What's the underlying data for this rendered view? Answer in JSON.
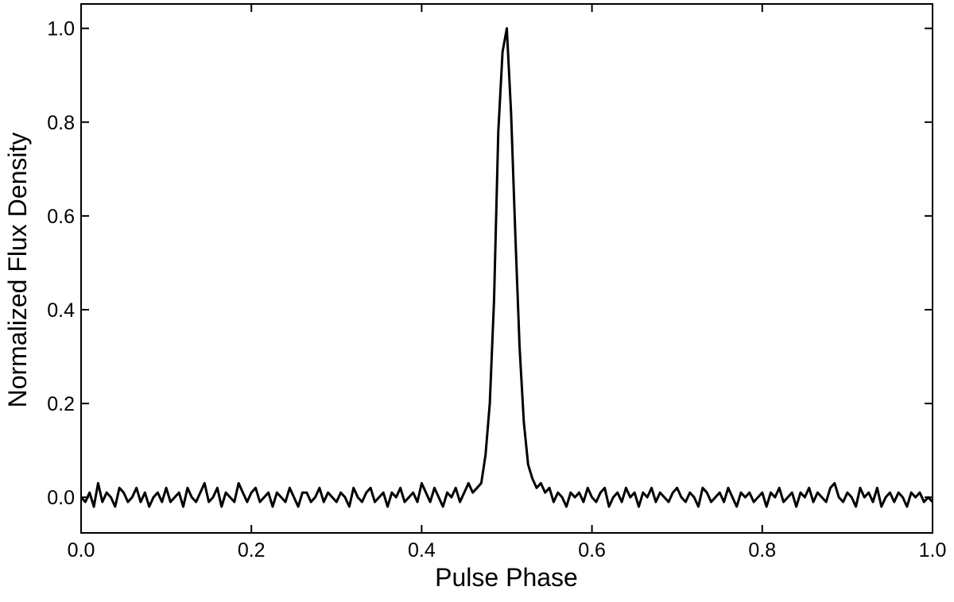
{
  "chart_data": {
    "type": "line",
    "xlabel": "Pulse Phase",
    "ylabel": "Normalized Flux Density",
    "xlim": [
      0,
      1
    ],
    "ylim": [
      -0.076,
      1.052
    ],
    "xticks": [
      {
        "value": 0,
        "label": "0.0"
      },
      0.2,
      0.4,
      0.6,
      0.8,
      {
        "value": 1,
        "label": "1.0"
      }
    ],
    "yticks": [
      {
        "value": 0,
        "label": "0.0"
      },
      0.2,
      0.4,
      0.6,
      0.8,
      {
        "value": 1,
        "label": "1.0"
      }
    ],
    "grid": false,
    "x": [
      0,
      0.005,
      0.01,
      0.015,
      0.02,
      0.025,
      0.03,
      0.035,
      0.04,
      0.045,
      0.05,
      0.055,
      0.06,
      0.065,
      0.07,
      0.075,
      0.08,
      0.085,
      0.09,
      0.095,
      0.1,
      0.105,
      0.11,
      0.115,
      0.12,
      0.125,
      0.13,
      0.135,
      0.14,
      0.145,
      0.15,
      0.155,
      0.16,
      0.165,
      0.17,
      0.175,
      0.18,
      0.185,
      0.19,
      0.195,
      0.2,
      0.205,
      0.21,
      0.215,
      0.22,
      0.225,
      0.23,
      0.235,
      0.24,
      0.245,
      0.25,
      0.255,
      0.26,
      0.265,
      0.27,
      0.275,
      0.28,
      0.285,
      0.29,
      0.295,
      0.3,
      0.305,
      0.31,
      0.315,
      0.32,
      0.325,
      0.33,
      0.335,
      0.34,
      0.345,
      0.35,
      0.355,
      0.36,
      0.365,
      0.37,
      0.375,
      0.38,
      0.385,
      0.39,
      0.395,
      0.4,
      0.405,
      0.41,
      0.415,
      0.42,
      0.425,
      0.43,
      0.435,
      0.44,
      0.445,
      0.45,
      0.455,
      0.46,
      0.465,
      0.47,
      0.475,
      0.48,
      0.485,
      0.49,
      0.495,
      0.5,
      0.505,
      0.51,
      0.515,
      0.52,
      0.525,
      0.53,
      0.535,
      0.54,
      0.545,
      0.55,
      0.555,
      0.56,
      0.565,
      0.57,
      0.575,
      0.58,
      0.585,
      0.59,
      0.595,
      0.6,
      0.605,
      0.61,
      0.615,
      0.62,
      0.625,
      0.63,
      0.635,
      0.64,
      0.645,
      0.65,
      0.655,
      0.66,
      0.665,
      0.67,
      0.675,
      0.68,
      0.685,
      0.69,
      0.695,
      0.7,
      0.705,
      0.71,
      0.715,
      0.72,
      0.725,
      0.73,
      0.735,
      0.74,
      0.745,
      0.75,
      0.755,
      0.76,
      0.765,
      0.77,
      0.775,
      0.78,
      0.785,
      0.79,
      0.795,
      0.8,
      0.805,
      0.81,
      0.815,
      0.82,
      0.825,
      0.83,
      0.835,
      0.84,
      0.845,
      0.85,
      0.855,
      0.86,
      0.865,
      0.87,
      0.875,
      0.88,
      0.885,
      0.89,
      0.895,
      0.9,
      0.905,
      0.91,
      0.915,
      0.92,
      0.925,
      0.93,
      0.935,
      0.94,
      0.945,
      0.95,
      0.955,
      0.96,
      0.965,
      0.97,
      0.975,
      0.98,
      0.985,
      0.99,
      0.995,
      1
    ],
    "series": [
      {
        "color": "#000000",
        "values": [
          0,
          -0.01,
          0.01,
          -0.02,
          0.03,
          -0.01,
          0.01,
          0,
          -0.02,
          0.02,
          0.01,
          -0.01,
          0,
          0.02,
          -0.01,
          0.01,
          -0.02,
          0,
          0.01,
          -0.01,
          0.02,
          -0.01,
          0,
          0.01,
          -0.02,
          0.02,
          0,
          -0.01,
          0.01,
          0.03,
          -0.01,
          0,
          0.02,
          -0.02,
          0.01,
          0,
          -0.01,
          0.03,
          0.01,
          -0.01,
          0.01,
          0.02,
          -0.01,
          0,
          0.01,
          -0.02,
          0.01,
          0,
          -0.01,
          0.02,
          0,
          -0.02,
          0.01,
          0.01,
          -0.01,
          0,
          0.02,
          -0.01,
          0.01,
          0,
          -0.01,
          0.01,
          0,
          -0.02,
          0.02,
          0,
          -0.01,
          0.01,
          0.02,
          -0.01,
          0,
          0.01,
          -0.02,
          0.01,
          0,
          0.02,
          -0.01,
          0,
          0.01,
          -0.01,
          0.03,
          0.01,
          -0.01,
          0.02,
          0,
          -0.02,
          0.01,
          0,
          0.02,
          -0.01,
          0.01,
          0.03,
          0.01,
          0.02,
          0.03,
          0.09,
          0.2,
          0.42,
          0.78,
          0.95,
          1,
          0.82,
          0.56,
          0.32,
          0.16,
          0.07,
          0.04,
          0.02,
          0.03,
          0.01,
          0.02,
          -0.01,
          0.01,
          0,
          -0.02,
          0.01,
          0,
          0.01,
          -0.01,
          0.02,
          0,
          -0.01,
          0.01,
          0.02,
          -0.02,
          0,
          0.01,
          -0.01,
          0.02,
          0,
          0.01,
          -0.02,
          0.01,
          0,
          0.02,
          -0.01,
          0.01,
          0,
          -0.01,
          0.01,
          0.02,
          0,
          -0.01,
          0.01,
          0,
          -0.02,
          0.02,
          0.01,
          -0.01,
          0,
          0.01,
          -0.01,
          0.02,
          0,
          -0.02,
          0.01,
          0,
          0.01,
          -0.01,
          0,
          0.01,
          -0.02,
          0.01,
          0,
          0.02,
          -0.01,
          0,
          0.01,
          -0.02,
          0.01,
          0,
          0.02,
          -0.01,
          0.01,
          0,
          -0.01,
          0.02,
          0.03,
          0,
          -0.01,
          0.01,
          0,
          -0.02,
          0.02,
          0,
          0.01,
          -0.01,
          0.02,
          -0.02,
          0,
          0.01,
          -0.01,
          0.01,
          0,
          -0.02,
          0.01,
          0,
          0.01,
          -0.01,
          0,
          -0.01
        ]
      }
    ]
  }
}
